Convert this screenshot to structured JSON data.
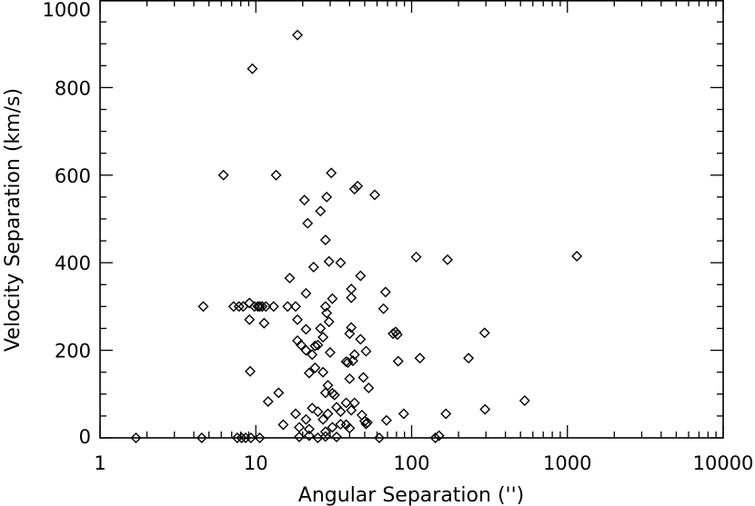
{
  "chart_data": {
    "type": "scatter",
    "title": "",
    "xlabel": "Angular Separation ('')",
    "ylabel": "Velocity Separation (km/s)",
    "x_scale": "log",
    "xlim": [
      1,
      10000
    ],
    "ylim": [
      0,
      1000
    ],
    "x_ticks": [
      "1",
      "10",
      "100",
      "1000",
      "10000"
    ],
    "y_ticks": [
      "0",
      "200",
      "400",
      "600",
      "800",
      "1000"
    ],
    "marker": "diamond-outline",
    "grid": false,
    "series": [
      {
        "points": [
          [
            18.5,
            920
          ],
          [
            9.5,
            843
          ],
          [
            6.2,
            600
          ],
          [
            13.5,
            600
          ],
          [
            30.5,
            605
          ],
          [
            20.5,
            543
          ],
          [
            28.5,
            550
          ],
          [
            21.5,
            490
          ],
          [
            26,
            518
          ],
          [
            43,
            568
          ],
          [
            45,
            575
          ],
          [
            58,
            555
          ],
          [
            28,
            452
          ],
          [
            23.5,
            390
          ],
          [
            29.5,
            403
          ],
          [
            35,
            400
          ],
          [
            16.5,
            365
          ],
          [
            47,
            370
          ],
          [
            107,
            413
          ],
          [
            170,
            407
          ],
          [
            1150,
            415
          ],
          [
            41,
            340
          ],
          [
            21,
            330
          ],
          [
            31,
            318
          ],
          [
            41,
            320
          ],
          [
            68,
            333
          ],
          [
            66,
            295
          ],
          [
            4.6,
            300
          ],
          [
            7.2,
            300
          ],
          [
            7.8,
            300
          ],
          [
            8.3,
            300
          ],
          [
            9.1,
            308
          ],
          [
            9.8,
            300
          ],
          [
            10.3,
            300
          ],
          [
            10.6,
            300
          ],
          [
            11,
            300
          ],
          [
            11.6,
            300
          ],
          [
            13,
            300
          ],
          [
            16,
            300
          ],
          [
            18,
            300
          ],
          [
            28,
            300
          ],
          [
            28.5,
            285
          ],
          [
            9.1,
            270
          ],
          [
            11.3,
            262
          ],
          [
            18.5,
            270
          ],
          [
            21,
            248
          ],
          [
            26,
            250
          ],
          [
            29.5,
            265
          ],
          [
            41,
            252
          ],
          [
            40,
            238
          ],
          [
            47,
            225
          ],
          [
            76,
            238
          ],
          [
            79,
            242
          ],
          [
            81,
            236
          ],
          [
            294,
            240
          ],
          [
            18.5,
            222
          ],
          [
            19.5,
            212
          ],
          [
            24,
            210
          ],
          [
            25,
            212
          ],
          [
            27,
            230
          ],
          [
            21,
            200
          ],
          [
            30,
            195
          ],
          [
            23,
            190
          ],
          [
            43,
            190
          ],
          [
            51,
            198
          ],
          [
            38,
            174
          ],
          [
            39,
            172
          ],
          [
            42,
            176
          ],
          [
            82,
            175
          ],
          [
            113,
            182
          ],
          [
            232,
            182
          ],
          [
            9.2,
            152
          ],
          [
            22,
            148
          ],
          [
            24,
            160
          ],
          [
            27,
            150
          ],
          [
            29,
            120
          ],
          [
            28,
            103
          ],
          [
            31,
            102
          ],
          [
            32,
            98
          ],
          [
            40,
            135
          ],
          [
            49,
            138
          ],
          [
            53,
            114
          ],
          [
            12,
            83
          ],
          [
            14,
            103
          ],
          [
            18,
            55
          ],
          [
            21,
            42
          ],
          [
            23,
            68
          ],
          [
            25,
            60
          ],
          [
            27,
            42
          ],
          [
            29,
            55
          ],
          [
            33,
            70
          ],
          [
            35,
            60
          ],
          [
            38,
            80
          ],
          [
            41,
            63
          ],
          [
            43,
            80
          ],
          [
            48,
            52
          ],
          [
            50,
            38
          ],
          [
            51,
            32
          ],
          [
            52,
            35
          ],
          [
            69,
            40
          ],
          [
            89,
            55
          ],
          [
            166,
            55
          ],
          [
            296,
            65
          ],
          [
            532,
            85
          ],
          [
            15,
            30
          ],
          [
            19,
            24
          ],
          [
            22,
            20
          ],
          [
            28,
            14
          ],
          [
            31,
            24
          ],
          [
            35,
            31
          ],
          [
            38,
            30
          ],
          [
            40,
            22
          ],
          [
            19,
            2
          ],
          [
            22,
            5
          ],
          [
            28,
            3
          ],
          [
            33,
            2
          ],
          [
            1.7,
            0
          ],
          [
            4.5,
            0
          ],
          [
            7.6,
            0
          ],
          [
            8.1,
            0
          ],
          [
            8.6,
            0
          ],
          [
            9.3,
            0
          ],
          [
            10.6,
            0
          ],
          [
            25,
            0
          ],
          [
            62,
            0
          ],
          [
            142,
            0
          ],
          [
            150,
            5
          ]
        ]
      }
    ]
  }
}
